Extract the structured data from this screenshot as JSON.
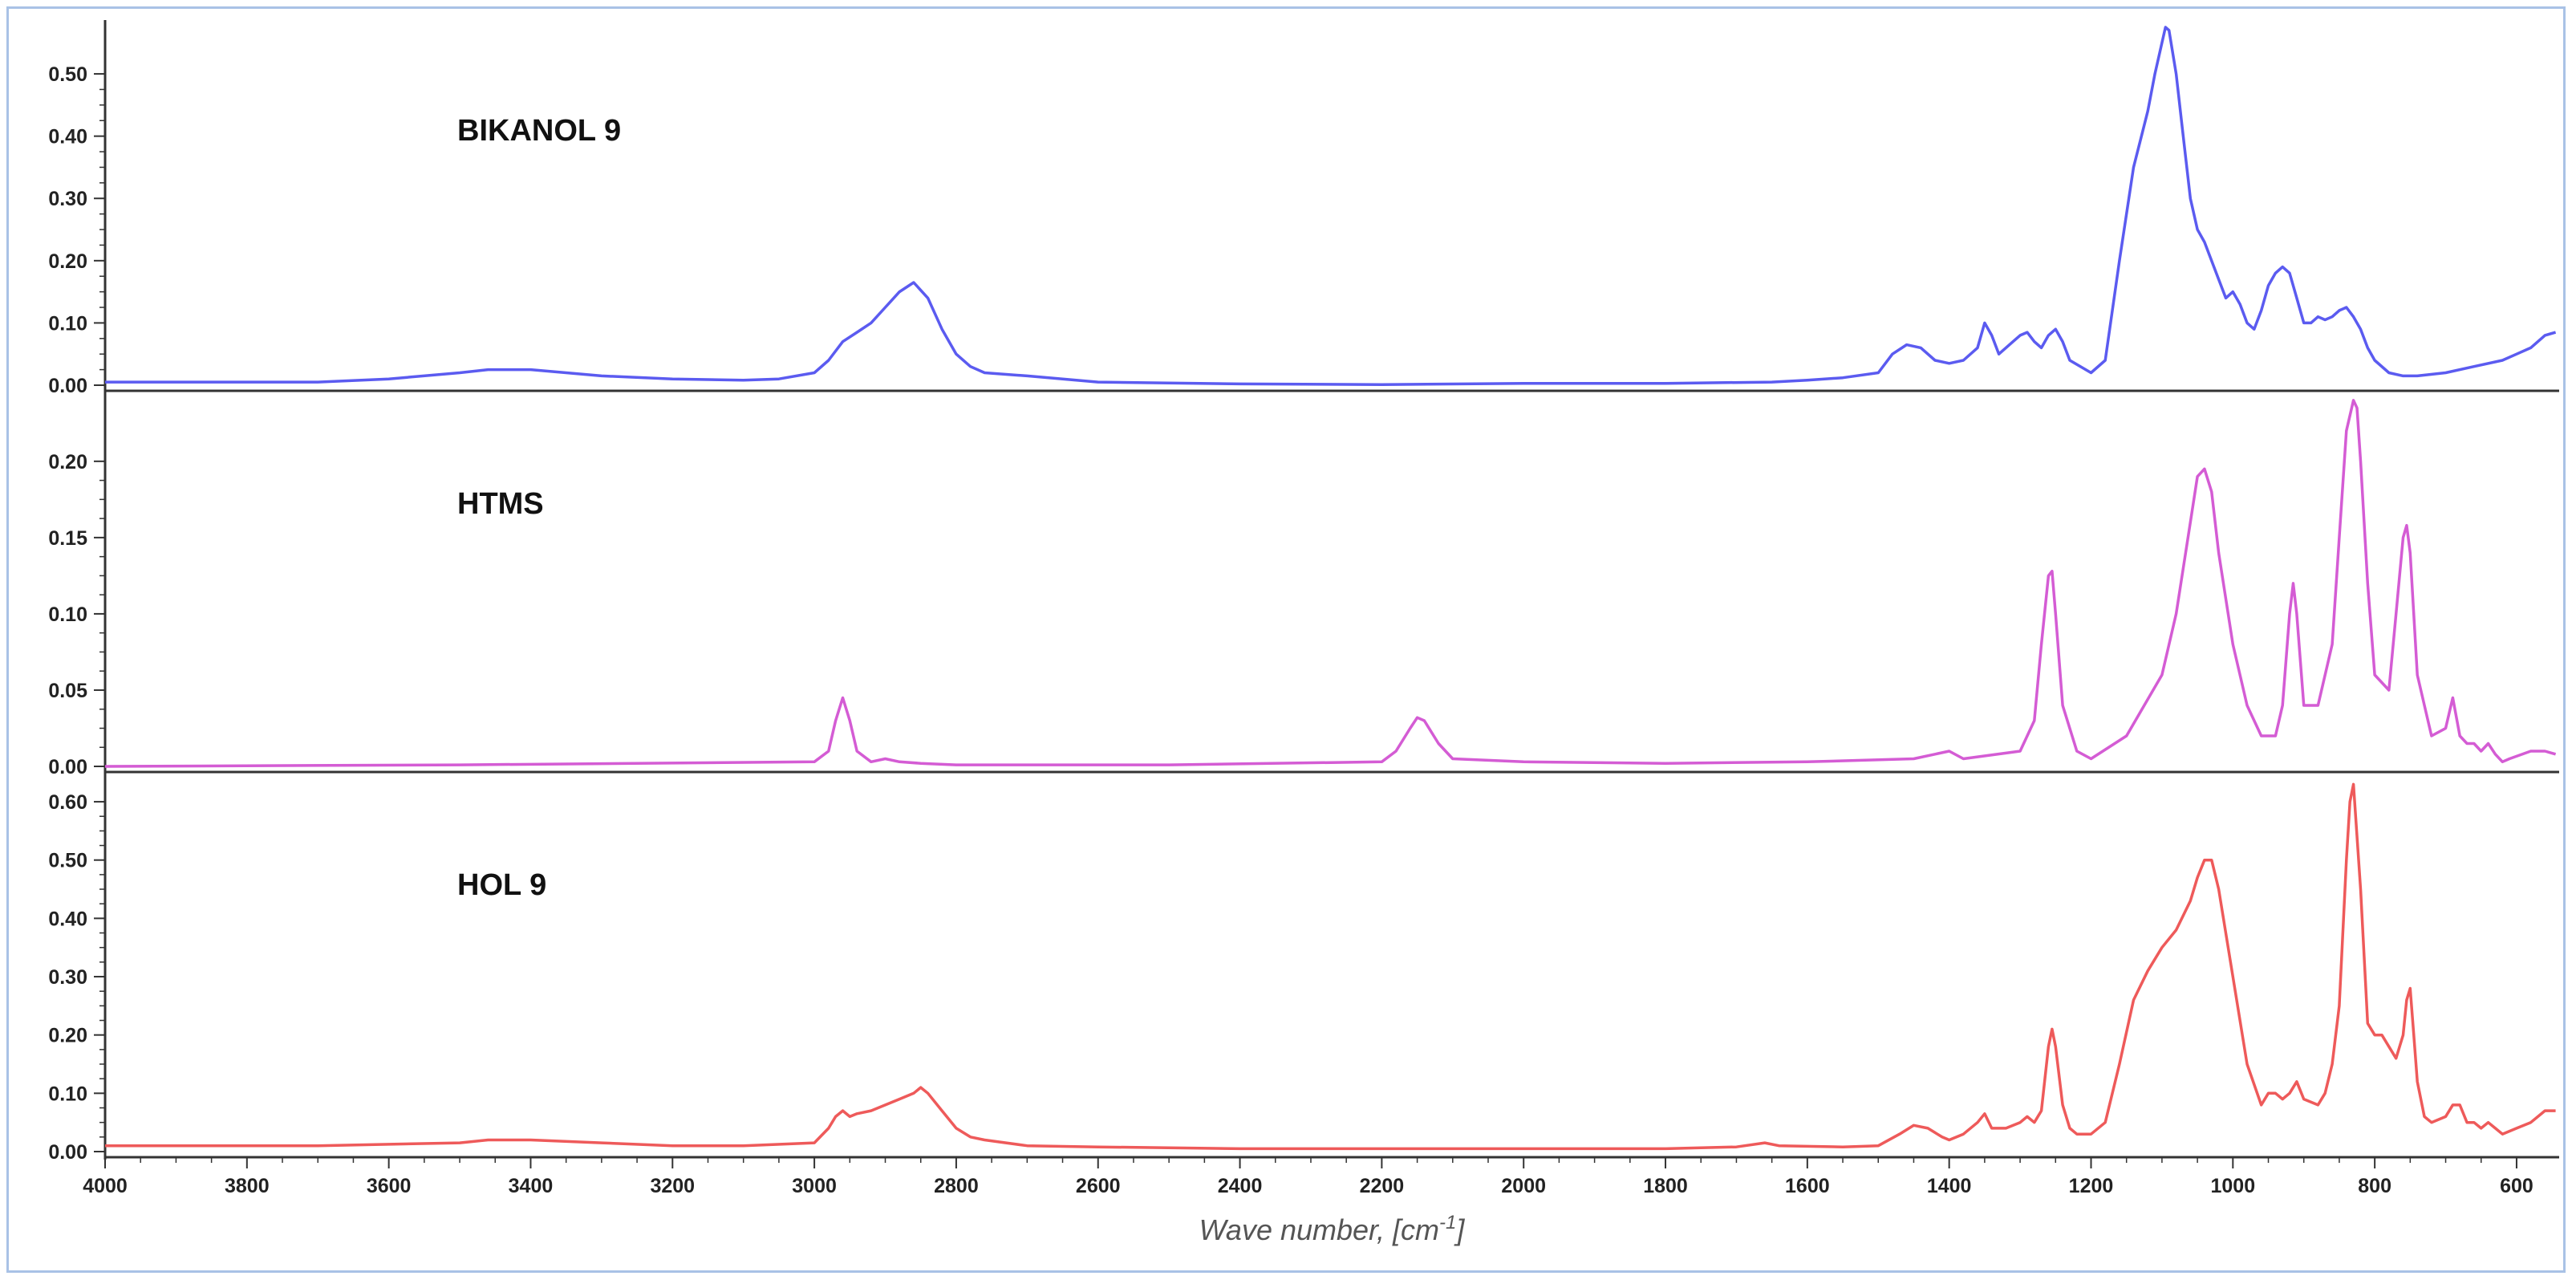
{
  "chart_data": {
    "type": "line",
    "xlabel": "Wave number, [cm",
    "xlabel_sup": "-1",
    "xlabel_end": "]",
    "xlim": [
      4000,
      540
    ],
    "x_ticks": [
      "4000",
      "3800",
      "3600",
      "3400",
      "3200",
      "3000",
      "2800",
      "2600",
      "2400",
      "2200",
      "2000",
      "1800",
      "1600",
      "1400",
      "1200",
      "1000",
      "800",
      "600"
    ],
    "panels": [
      {
        "name": "BIKANOL 9",
        "color": "#5b5bf0",
        "ylim": [
          0,
          0.58
        ],
        "y_ticks": [
          "0.00",
          "0.10",
          "0.20",
          "0.30",
          "0.40",
          "0.50"
        ],
        "x": [
          4000,
          3900,
          3700,
          3600,
          3500,
          3460,
          3400,
          3300,
          3200,
          3100,
          3050,
          3000,
          2980,
          2960,
          2940,
          2920,
          2900,
          2880,
          2860,
          2840,
          2820,
          2800,
          2780,
          2760,
          2700,
          2600,
          2400,
          2200,
          2000,
          1800,
          1650,
          1600,
          1550,
          1500,
          1480,
          1460,
          1440,
          1420,
          1400,
          1380,
          1360,
          1350,
          1340,
          1330,
          1320,
          1310,
          1300,
          1290,
          1280,
          1270,
          1260,
          1250,
          1240,
          1230,
          1200,
          1180,
          1160,
          1140,
          1120,
          1110,
          1100,
          1095,
          1090,
          1080,
          1070,
          1060,
          1050,
          1040,
          1020,
          1010,
          1000,
          990,
          980,
          970,
          960,
          950,
          940,
          930,
          920,
          910,
          900,
          890,
          880,
          870,
          860,
          850,
          840,
          830,
          820,
          810,
          800,
          780,
          760,
          740,
          700,
          660,
          620,
          600,
          580,
          560,
          545
        ],
        "y": [
          0.005,
          0.005,
          0.005,
          0.01,
          0.02,
          0.025,
          0.025,
          0.015,
          0.01,
          0.008,
          0.01,
          0.02,
          0.04,
          0.07,
          0.085,
          0.1,
          0.125,
          0.15,
          0.165,
          0.14,
          0.09,
          0.05,
          0.03,
          0.02,
          0.015,
          0.005,
          0.002,
          0.001,
          0.003,
          0.003,
          0.005,
          0.008,
          0.012,
          0.02,
          0.05,
          0.065,
          0.06,
          0.04,
          0.035,
          0.04,
          0.06,
          0.1,
          0.08,
          0.05,
          0.06,
          0.07,
          0.08,
          0.085,
          0.07,
          0.06,
          0.08,
          0.09,
          0.07,
          0.04,
          0.02,
          0.04,
          0.2,
          0.35,
          0.44,
          0.5,
          0.55,
          0.575,
          0.57,
          0.5,
          0.4,
          0.3,
          0.25,
          0.23,
          0.17,
          0.14,
          0.15,
          0.13,
          0.1,
          0.09,
          0.12,
          0.16,
          0.18,
          0.19,
          0.18,
          0.14,
          0.1,
          0.1,
          0.11,
          0.105,
          0.11,
          0.12,
          0.125,
          0.11,
          0.09,
          0.06,
          0.04,
          0.02,
          0.015,
          0.015,
          0.02,
          0.03,
          0.04,
          0.05,
          0.06,
          0.08,
          0.085
        ]
      },
      {
        "name": "HTMS",
        "color": "#d45cd4",
        "ylim": [
          0,
          0.242
        ],
        "y_ticks": [
          "0.00",
          "0.05",
          "0.10",
          "0.15",
          "0.20"
        ],
        "x": [
          4000,
          3500,
          3000,
          2980,
          2970,
          2960,
          2950,
          2940,
          2920,
          2900,
          2880,
          2850,
          2800,
          2500,
          2200,
          2180,
          2160,
          2150,
          2140,
          2120,
          2100,
          2000,
          1800,
          1600,
          1450,
          1420,
          1400,
          1380,
          1300,
          1280,
          1270,
          1260,
          1255,
          1250,
          1240,
          1220,
          1200,
          1150,
          1100,
          1080,
          1060,
          1050,
          1040,
          1030,
          1020,
          1000,
          980,
          960,
          940,
          930,
          920,
          915,
          910,
          900,
          880,
          860,
          850,
          840,
          830,
          825,
          820,
          810,
          800,
          780,
          770,
          760,
          755,
          750,
          740,
          720,
          700,
          690,
          680,
          670,
          660,
          650,
          640,
          630,
          620,
          610,
          580,
          560,
          545
        ],
        "y": [
          0.0,
          0.001,
          0.003,
          0.01,
          0.03,
          0.045,
          0.03,
          0.01,
          0.003,
          0.005,
          0.003,
          0.002,
          0.001,
          0.001,
          0.003,
          0.01,
          0.025,
          0.032,
          0.03,
          0.015,
          0.005,
          0.003,
          0.002,
          0.003,
          0.005,
          0.008,
          0.01,
          0.005,
          0.01,
          0.03,
          0.08,
          0.125,
          0.128,
          0.1,
          0.04,
          0.01,
          0.005,
          0.02,
          0.06,
          0.1,
          0.16,
          0.19,
          0.195,
          0.18,
          0.14,
          0.08,
          0.04,
          0.02,
          0.02,
          0.04,
          0.1,
          0.12,
          0.1,
          0.04,
          0.04,
          0.08,
          0.15,
          0.22,
          0.24,
          0.235,
          0.2,
          0.12,
          0.06,
          0.05,
          0.1,
          0.15,
          0.158,
          0.14,
          0.06,
          0.02,
          0.025,
          0.045,
          0.02,
          0.015,
          0.015,
          0.01,
          0.015,
          0.008,
          0.003,
          0.005,
          0.01,
          0.01,
          0.008
        ]
      },
      {
        "name": "HOL 9",
        "color": "#ee5a5a",
        "ylim": [
          0,
          0.64
        ],
        "y_ticks": [
          "0.00",
          "0.10",
          "0.20",
          "0.30",
          "0.40",
          "0.50",
          "0.60"
        ],
        "x": [
          4000,
          3700,
          3500,
          3460,
          3400,
          3300,
          3200,
          3100,
          3000,
          2980,
          2970,
          2960,
          2950,
          2940,
          2920,
          2900,
          2880,
          2860,
          2850,
          2840,
          2820,
          2800,
          2780,
          2760,
          2700,
          2600,
          2400,
          2200,
          2000,
          1800,
          1700,
          1660,
          1640,
          1550,
          1500,
          1470,
          1450,
          1430,
          1410,
          1400,
          1380,
          1360,
          1350,
          1340,
          1320,
          1300,
          1290,
          1280,
          1270,
          1260,
          1255,
          1250,
          1240,
          1230,
          1220,
          1200,
          1180,
          1160,
          1140,
          1120,
          1100,
          1080,
          1060,
          1050,
          1040,
          1030,
          1020,
          1000,
          980,
          960,
          950,
          940,
          930,
          920,
          910,
          900,
          880,
          870,
          860,
          850,
          840,
          835,
          830,
          820,
          810,
          800,
          790,
          780,
          770,
          760,
          755,
          750,
          745,
          740,
          730,
          720,
          700,
          690,
          680,
          670,
          660,
          650,
          640,
          630,
          620,
          600,
          580,
          560,
          545
        ],
        "y": [
          0.01,
          0.01,
          0.015,
          0.02,
          0.02,
          0.015,
          0.01,
          0.01,
          0.015,
          0.04,
          0.06,
          0.07,
          0.06,
          0.065,
          0.07,
          0.08,
          0.09,
          0.1,
          0.11,
          0.1,
          0.07,
          0.04,
          0.025,
          0.02,
          0.01,
          0.008,
          0.005,
          0.005,
          0.005,
          0.005,
          0.008,
          0.015,
          0.01,
          0.008,
          0.01,
          0.03,
          0.045,
          0.04,
          0.025,
          0.02,
          0.03,
          0.05,
          0.065,
          0.04,
          0.04,
          0.05,
          0.06,
          0.05,
          0.07,
          0.18,
          0.21,
          0.18,
          0.08,
          0.04,
          0.03,
          0.03,
          0.05,
          0.15,
          0.26,
          0.31,
          0.35,
          0.38,
          0.43,
          0.47,
          0.5,
          0.5,
          0.45,
          0.3,
          0.15,
          0.08,
          0.1,
          0.1,
          0.09,
          0.1,
          0.12,
          0.09,
          0.08,
          0.1,
          0.15,
          0.25,
          0.5,
          0.6,
          0.63,
          0.45,
          0.22,
          0.2,
          0.2,
          0.18,
          0.16,
          0.2,
          0.26,
          0.28,
          0.2,
          0.12,
          0.06,
          0.05,
          0.06,
          0.08,
          0.08,
          0.05,
          0.05,
          0.04,
          0.05,
          0.04,
          0.03,
          0.04,
          0.05,
          0.07,
          0.07
        ]
      }
    ]
  }
}
